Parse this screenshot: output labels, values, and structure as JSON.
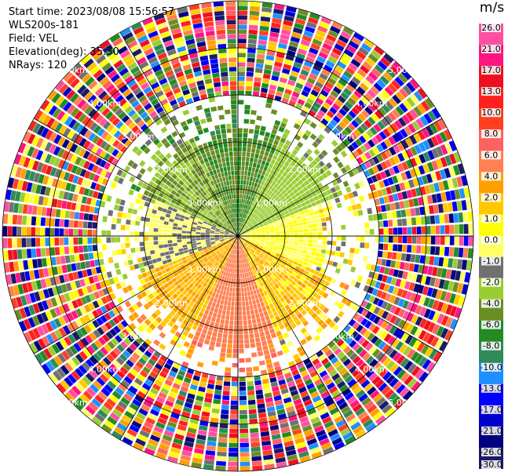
{
  "header": {
    "start_time": "Start time: 2023/08/08 15:56:57",
    "station": "WLS200s-181",
    "field": "Field: VEL",
    "elevation": "Elevation(deg): 35.30",
    "nrays": "NRays: 120"
  },
  "colorbar": {
    "unit": "m/s",
    "ticks": [
      "26.0",
      "21.0",
      "17.0",
      "13.0",
      "10.0",
      "8.0",
      "6.0",
      "4.0",
      "2.0",
      "1.0",
      "0.0",
      "-1.0",
      "-2.0",
      "-4.0",
      "-6.0",
      "-8.0",
      "-10.0",
      "-13.0",
      "-17.0",
      "-21.0",
      "-26.0",
      "-30.0"
    ],
    "colors": [
      "#ff4fa0",
      "#ff1480",
      "#ee1020",
      "#ff2020",
      "#ff4020",
      "#ff6060",
      "#ff8050",
      "#ffa000",
      "#ffc800",
      "#ffff00",
      "#ffff66",
      "#707070",
      "#9acd32",
      "#6b8e23",
      "#228b22",
      "#2e8b57",
      "#1e90ff",
      "#0000ff",
      "#0000cd",
      "#000080",
      "#1a1a6a"
    ]
  },
  "chart_data": {
    "type": "heatmap",
    "projection": "polar PPI",
    "field": "VEL",
    "units": "m/s",
    "nrays": 120,
    "range_rings_km": [
      1.0,
      2.0,
      3.0,
      4.0,
      5.0
    ],
    "ring_labels": [
      "1.00km",
      "2.00km",
      "3.00km",
      "4.00km",
      "5.00km"
    ],
    "sectors": [
      {
        "direction": "N",
        "velocity_ms": -6.0,
        "range_km": [
          0.0,
          2.2
        ]
      },
      {
        "direction": "NE",
        "velocity_ms": -3.0,
        "range_km": [
          0.0,
          2.2
        ]
      },
      {
        "direction": "E",
        "velocity_ms": 0.0,
        "range_km": [
          0.0,
          1.8
        ]
      },
      {
        "direction": "SE",
        "velocity_ms": 1.5,
        "range_km": [
          0.0,
          2.2
        ]
      },
      {
        "direction": "S",
        "velocity_ms": 5.0,
        "range_km": [
          0.0,
          2.4
        ]
      },
      {
        "direction": "SW",
        "velocity_ms": 2.0,
        "range_km": [
          0.0,
          2.2
        ]
      },
      {
        "direction": "W",
        "velocity_ms": -1.0,
        "range_km": [
          0.0,
          2.0
        ]
      },
      {
        "direction": "NW",
        "velocity_ms": -4.0,
        "range_km": [
          0.0,
          2.2
        ]
      }
    ],
    "noise_beyond_km": 3.0,
    "max_range_km": 5.0,
    "grid": true
  }
}
